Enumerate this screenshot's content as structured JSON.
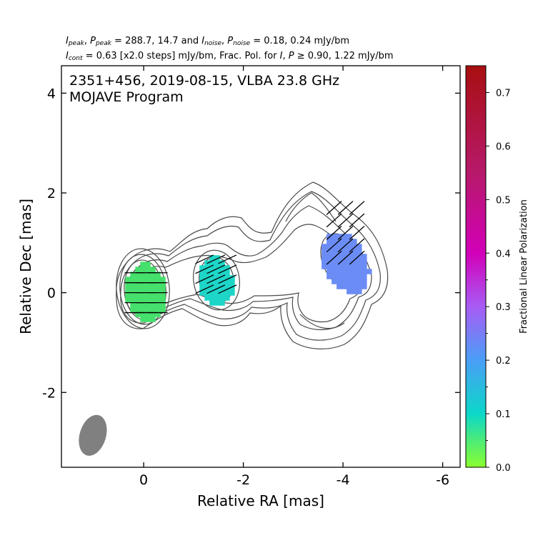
{
  "header": {
    "line1": {
      "i_label": "I",
      "i_sub": "peak",
      "sep1": ", ",
      "p_label": "P",
      "p_sub": "peak",
      "mid": " = 288.7, 14.7 and ",
      "in_label": "I",
      "in_sub": "noise",
      "sep2": ", ",
      "pn_label": "P",
      "pn_sub": "noise",
      "tail": " = 0.18, 0.24 mJy/bm"
    },
    "line2": {
      "ic_label": "I",
      "ic_sub": "cont",
      "mid": " = 0.63 [x2.0 steps] mJy/bm, Frac. Pol. for ",
      "i_label": "I",
      "sep": ", ",
      "p_label": "P",
      "tail": " ≥ 0.90, 1.22 mJy/bm"
    }
  },
  "chart_data": {
    "type": "contour",
    "title": "2351+456, 2019-08-15, VLBA 23.8 GHz",
    "subtitle": "MOJAVE Program",
    "xlabel": "Relative RA [mas]",
    "ylabel": "Relative Dec [mas]",
    "xlim": [
      1.65,
      -6.35
    ],
    "ylim": [
      -3.5,
      4.55
    ],
    "x_ticks": [
      0,
      -2,
      -4,
      -6
    ],
    "x_tick_labels": [
      "0",
      "-2",
      "-4",
      "-6"
    ],
    "y_ticks": [
      4,
      2,
      0,
      -2
    ],
    "y_tick_labels": [
      "4",
      "2",
      "0",
      "-2"
    ],
    "contour_color": "#4a4a4a",
    "beam": {
      "x": 1.02,
      "y": -2.86,
      "major": 0.6,
      "minor": 0.33,
      "pa_deg": 17,
      "color": "#808080"
    },
    "components": [
      {
        "name": "core",
        "x": -0.05,
        "y": 0.0,
        "rx": 0.4,
        "ry": 0.57,
        "angle_deg": -5,
        "fpol": 0.075,
        "color": "#46e06c",
        "evpa_deg": 0,
        "evpa_y": [
          -0.4,
          -0.2,
          0.0,
          0.2,
          0.4
        ]
      },
      {
        "name": "c1",
        "x": -1.45,
        "y": 0.22,
        "rx": 0.35,
        "ry": 0.48,
        "angle_deg": -10,
        "fpol": 0.12,
        "color": "#1ed6c8",
        "evpa_deg": 25,
        "evpa_y": [
          -0.15,
          0.05,
          0.25,
          0.45
        ]
      },
      {
        "name": "c2",
        "x": -4.05,
        "y": 0.6,
        "rx": 0.42,
        "ry": 0.63,
        "angle_deg": -25,
        "fpol": 0.24,
        "color": "#6b8cf5",
        "evpa_deg": 42,
        "evpa_y": [
          0.1,
          0.35,
          0.6,
          0.85,
          1.1
        ]
      }
    ]
  },
  "colorbar": {
    "label": "Fractional Linear Polarization",
    "range": [
      0.0,
      0.75
    ],
    "ticks": [
      0.0,
      0.1,
      0.2,
      0.3,
      0.4,
      0.5,
      0.6,
      0.7
    ],
    "tick_labels": [
      "0.0",
      "0.1",
      "0.2",
      "0.3",
      "0.4",
      "0.5",
      "0.6",
      "0.7"
    ],
    "minor_ticks": [
      0.05,
      0.15,
      0.25,
      0.35
    ],
    "stops": [
      {
        "v": 0.0,
        "color": "#8aff2e"
      },
      {
        "v": 0.05,
        "color": "#4deb78"
      },
      {
        "v": 0.1,
        "color": "#0bd8c9"
      },
      {
        "v": 0.2,
        "color": "#4a9ef6"
      },
      {
        "v": 0.3,
        "color": "#a85cf5"
      },
      {
        "v": 0.4,
        "color": "#d200b8"
      },
      {
        "v": 0.55,
        "color": "#b7196a"
      },
      {
        "v": 0.75,
        "color": "#a80f10"
      }
    ]
  }
}
